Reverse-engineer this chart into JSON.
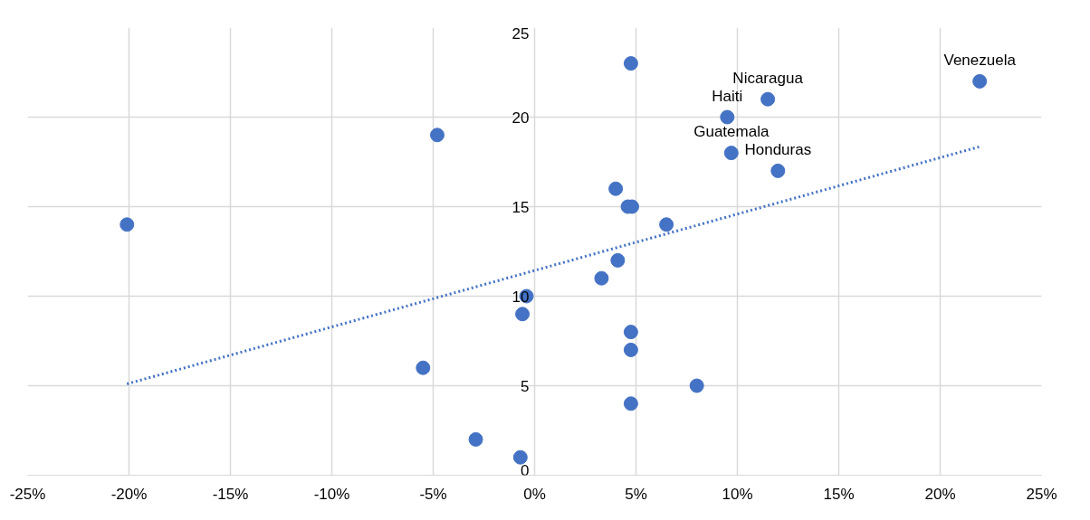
{
  "chart_data": {
    "type": "scatter",
    "color": "#4472c4",
    "marker": "circle",
    "grid": true,
    "x": [
      -20.1,
      -4.8,
      4.75,
      9.5,
      11.5,
      21.95,
      9.7,
      12.0,
      4.0,
      4.6,
      4.8,
      6.5,
      4.1,
      3.3,
      -0.4,
      -0.6,
      4.75,
      4.75,
      -5.5,
      8.0,
      4.75,
      -2.9,
      -0.7
    ],
    "values": [
      14,
      19,
      23,
      20,
      21,
      22,
      18,
      17,
      16,
      15,
      15,
      14,
      12,
      11,
      10,
      9,
      8,
      7,
      6,
      5,
      4,
      2,
      1
    ],
    "series": [
      {
        "type": "line",
        "marker": "none",
        "line_style": "dotted",
        "color": "#4472c4",
        "x": [
          -20.1,
          21.95
        ],
        "values": [
          5.1,
          18.35
        ]
      }
    ],
    "xlim": [
      -25,
      25
    ],
    "xticks": [
      {
        "value": -25,
        "label": "-25%"
      },
      {
        "value": -20,
        "label": "-20%"
      },
      {
        "value": -15,
        "label": "-15%"
      },
      {
        "value": -10,
        "label": "-10%"
      },
      {
        "value": -5,
        "label": "-5%"
      },
      {
        "value": 0,
        "label": "0%"
      },
      {
        "value": 5,
        "label": "5%"
      },
      {
        "value": 10,
        "label": "10%"
      },
      {
        "value": 15,
        "label": "15%"
      },
      {
        "value": 20,
        "label": "20%"
      },
      {
        "value": 25,
        "label": "25%"
      }
    ],
    "ylim": [
      0,
      25
    ],
    "yticks": [
      0,
      5,
      10,
      15,
      20,
      25
    ],
    "annotations": [
      {
        "text": "Venezuela",
        "x": 21.95,
        "y": 22
      },
      {
        "text": "Nicaragua",
        "x": 11.5,
        "y": 21
      },
      {
        "text": "Haiti",
        "x": 9.5,
        "y": 20
      },
      {
        "text": "Guatemala",
        "x": 9.7,
        "y": 18
      },
      {
        "text": "Honduras",
        "x": 12.0,
        "y": 17
      }
    ]
  }
}
